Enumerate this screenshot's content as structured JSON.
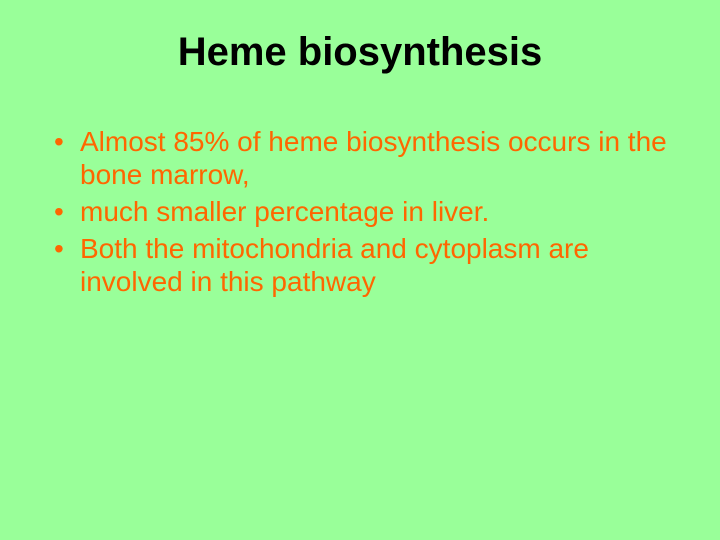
{
  "slide": {
    "background_color": "#99ff99",
    "title": {
      "text": "Heme biosynthesis",
      "font_size": 40,
      "font_weight": "bold",
      "color": "#000000",
      "align": "center"
    },
    "bullets": {
      "color": "#ff6600",
      "font_size": 28,
      "marker": "•",
      "items": [
        "Almost 85% of heme biosynthesis occurs in the bone marrow,",
        "much smaller percentage in liver.",
        "Both the mitochondria and cytoplasm are involved in this pathway"
      ]
    }
  }
}
